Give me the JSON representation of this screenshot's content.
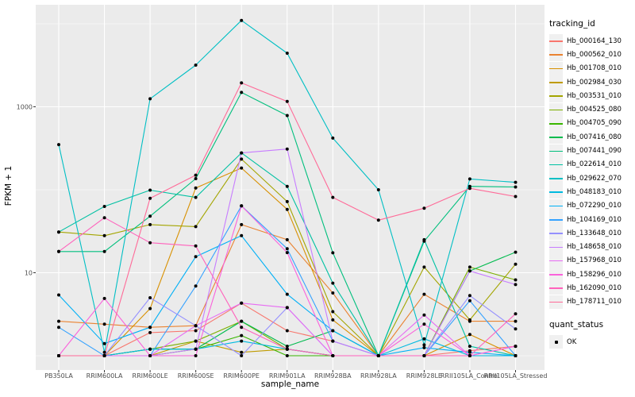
{
  "chart_data": {
    "type": "line",
    "title": "",
    "xlabel": "sample_name",
    "ylabel": "FPKM + 1",
    "yscale": "log10",
    "ylim": [
      1,
      16000
    ],
    "ytick_values": [
      10,
      1000
    ],
    "ytick_labels": [
      "10",
      "1000"
    ],
    "minor_grid_values": [
      1,
      100,
      10000
    ],
    "grid": "white major/minor gridlines on gray panel",
    "legend_position": "right",
    "point_marker": "small black dot (quant_status OK)",
    "categories": [
      "PB350LA",
      "RRIM600LA",
      "RRIM600LE",
      "RRIM600SE",
      "RRIM600PE",
      "RRIM901LA",
      "RRIM928BA",
      "RRIM928LA",
      "RRIM928LE",
      "RRII105LA_Control",
      "RRII105LA_Stressed"
    ],
    "series": [
      {
        "name": "Hb_000164_130",
        "color": "#F8766D",
        "values": [
          1.0,
          1.0,
          1.9,
          2.0,
          4.3,
          2.0,
          1.5,
          1.0,
          1.0,
          1.15,
          1.3
        ]
      },
      {
        "name": "Hb_000562_010",
        "color": "#EA8331",
        "values": [
          2.6,
          2.4,
          2.2,
          2.3,
          38,
          25,
          5.7,
          1.0,
          5.5,
          2.6,
          2.6
        ]
      },
      {
        "name": "Hb_001708_010",
        "color": "#D89000",
        "values": [
          1.0,
          1.0,
          3.7,
          105,
          183,
          58,
          2.7,
          1.0,
          1.0,
          1.8,
          1.0
        ]
      },
      {
        "name": "Hb_002984_030",
        "color": "#C09B00",
        "values": [
          1.0,
          1.0,
          1.0,
          1.5,
          1.1,
          1.2,
          1.0,
          1.0,
          1.0,
          1.0,
          1.0
        ]
      },
      {
        "name": "Hb_003531_010",
        "color": "#A3A500",
        "values": [
          31,
          28,
          38,
          36,
          234,
          72,
          3.4,
          1.0,
          11.7,
          2.7,
          12.7
        ]
      },
      {
        "name": "Hb_004525_080",
        "color": "#7CAE00",
        "values": [
          1.0,
          1.0,
          1.2,
          1.5,
          2.6,
          1.2,
          1.0,
          1.0,
          1.0,
          11.7,
          8.2
        ]
      },
      {
        "name": "Hb_004705_090",
        "color": "#39B600",
        "values": [
          1.0,
          1.0,
          1.0,
          1.2,
          1.75,
          1.0,
          1.0,
          1.0,
          1.0,
          1.0,
          1.0
        ]
      },
      {
        "name": "Hb_007416_080",
        "color": "#00BB4E",
        "values": [
          1.0,
          1.0,
          1.2,
          1.2,
          2.6,
          1.3,
          2.0,
          1.0,
          1.0,
          10.5,
          17.7
        ]
      },
      {
        "name": "Hb_007441_090",
        "color": "#00BF7D",
        "values": [
          18,
          18,
          48,
          136,
          1490,
          785,
          17.4,
          1.0,
          24,
          110,
          108
        ]
      },
      {
        "name": "Hb_022614_010",
        "color": "#00C1A3",
        "values": [
          31,
          63,
          99,
          81,
          278,
          110,
          7.5,
          1.0,
          25,
          1.3,
          1.0
        ]
      },
      {
        "name": "Hb_029622_070",
        "color": "#00BFC4",
        "values": [
          350,
          1.1,
          1250,
          3180,
          11000,
          4430,
          420,
          100,
          1.35,
          135,
          123
        ]
      },
      {
        "name": "Hb_048183_010",
        "color": "#00BAE0",
        "values": [
          1.0,
          1.0,
          1.2,
          1.2,
          1.5,
          1.2,
          1.0,
          1.0,
          1.6,
          1.0,
          1.0
        ]
      },
      {
        "name": "Hb_072290_010",
        "color": "#00B0F6",
        "values": [
          5.4,
          1.4,
          2.2,
          15.6,
          28,
          5.5,
          2.0,
          1.0,
          1.25,
          1.1,
          1.0
        ]
      },
      {
        "name": "Hb_104169_010",
        "color": "#35A2FF",
        "values": [
          2.2,
          1.0,
          1.0,
          6.9,
          64,
          19.5,
          1.5,
          1.0,
          1.0,
          4.6,
          1.0
        ]
      },
      {
        "name": "Hb_133648_010",
        "color": "#9590FF",
        "values": [
          1.0,
          1.0,
          5.0,
          2.3,
          1.0,
          3.8,
          1.0,
          1.0,
          1.0,
          5.3,
          2.1
        ]
      },
      {
        "name": "Hb_148658_010",
        "color": "#C77CFF",
        "values": [
          1.0,
          1.0,
          1.0,
          1.2,
          278,
          310,
          1.5,
          1.0,
          1.0,
          10.5,
          7.2
        ]
      },
      {
        "name": "Hb_157968_010",
        "color": "#E76BF3",
        "values": [
          1.0,
          1.0,
          1.0,
          2.3,
          4.3,
          3.8,
          1.0,
          1.0,
          3.1,
          1.0,
          1.3
        ]
      },
      {
        "name": "Hb_158296_010",
        "color": "#FA62DB",
        "values": [
          1.0,
          4.9,
          1.0,
          1.0,
          64,
          17.5,
          1.0,
          1.0,
          2.4,
          1.0,
          1.3
        ]
      },
      {
        "name": "Hb_162090_010",
        "color": "#FF62BC",
        "values": [
          18,
          46,
          23,
          21,
          2.2,
          1.2,
          1.0,
          1.0,
          1.0,
          1.0,
          3.2
        ]
      },
      {
        "name": "Hb_178711_010",
        "color": "#FF6A98",
        "values": [
          1.0,
          1.0,
          79,
          150,
          1940,
          1160,
          81,
          43,
          60,
          104,
          83
        ]
      }
    ]
  },
  "legend": {
    "tracking_title": "tracking_id",
    "quant_title": "quant_status",
    "quant_items": [
      "OK"
    ]
  },
  "colors": {
    "panel_bg": "#EBEBEB",
    "grid_major": "#FFFFFF",
    "grid_minor": "#F7F7F7",
    "tick_mark": "#333333",
    "tick_label": "#4D4D4D",
    "point": "#000000",
    "legend_key_bg": "#F0F0F0"
  }
}
